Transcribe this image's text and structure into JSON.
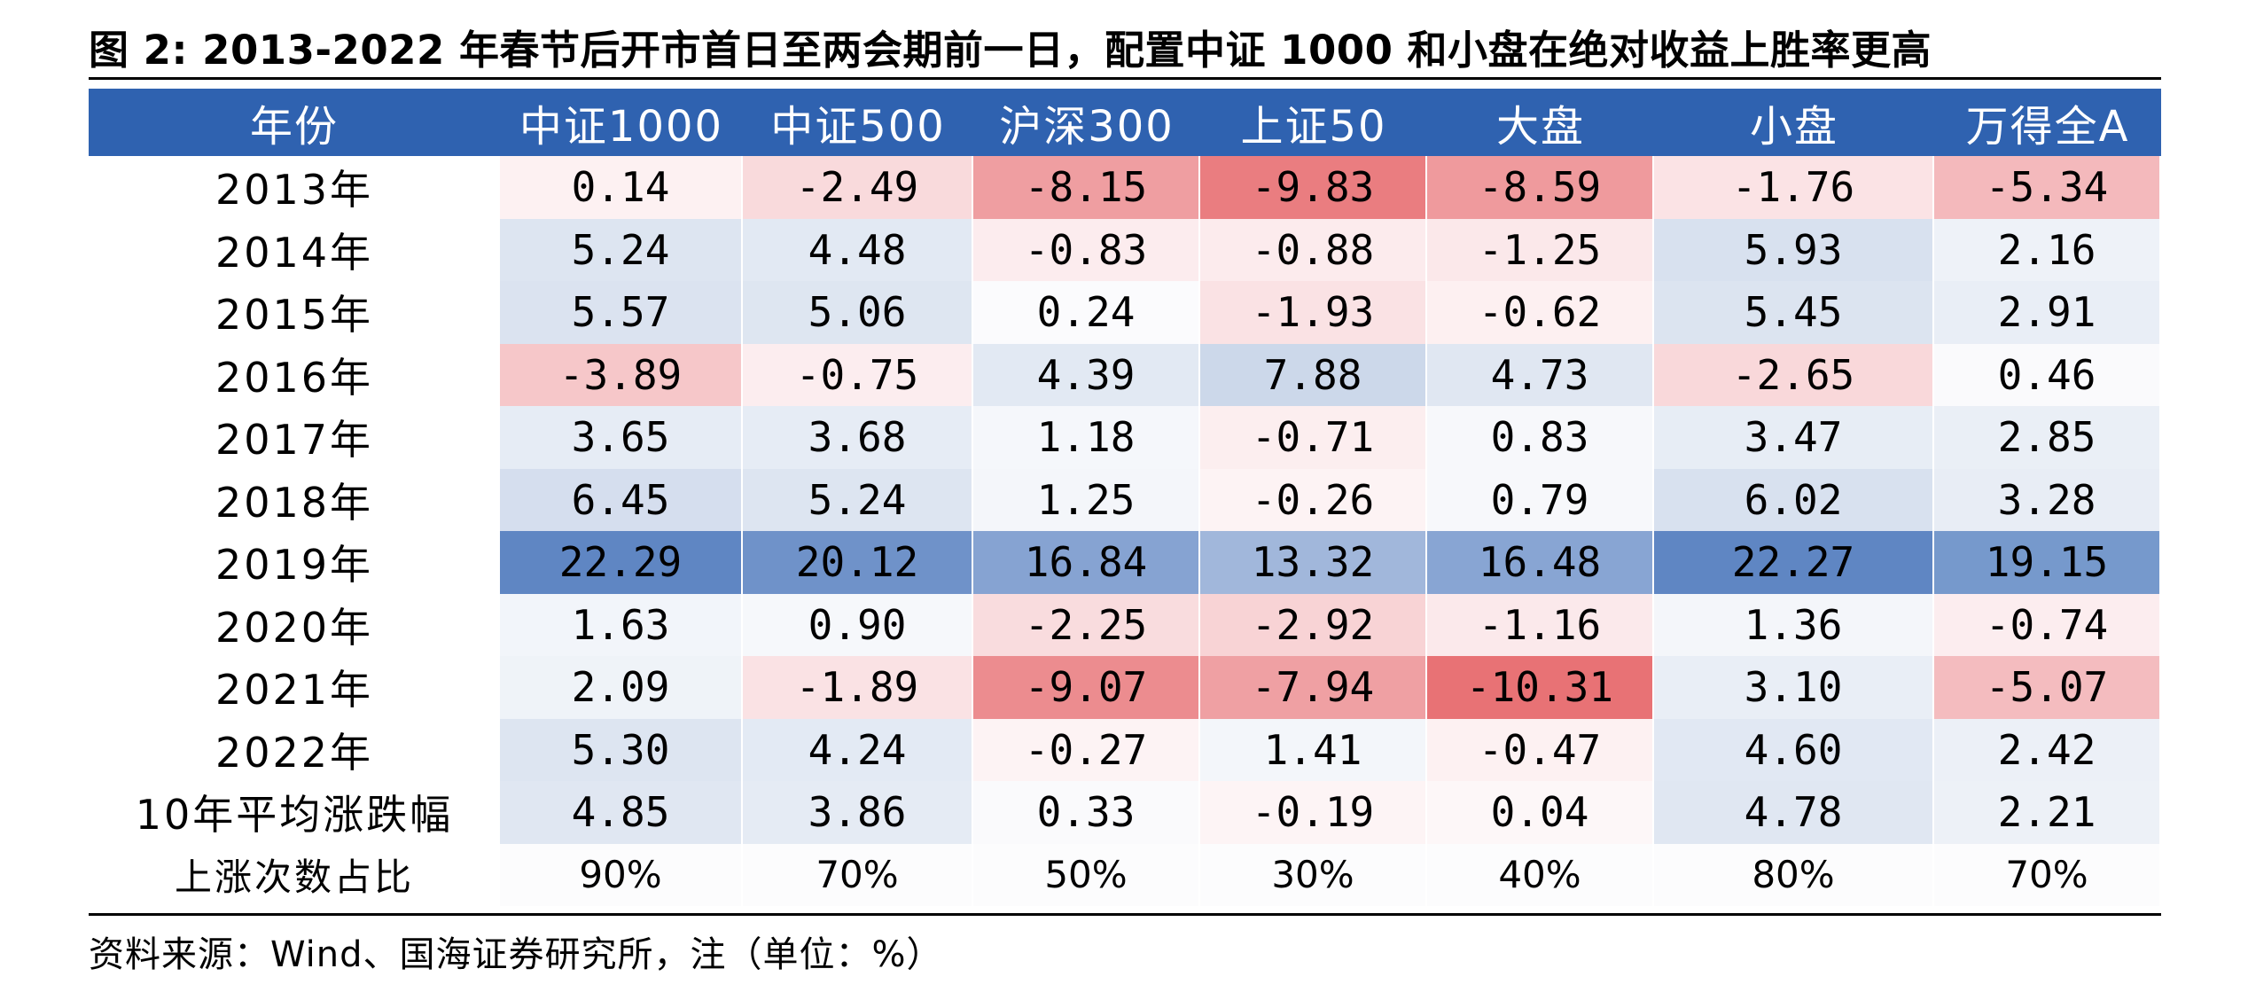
{
  "title": "图 2: 2013-2022 年春节后开市首日至两会期前一日，配置中证 1000 和小盘在绝对收益上胜率更高",
  "source": "资料来源：Wind、国海证券研究所，注（单位：%）",
  "table": {
    "headers": [
      "年份",
      "中证1000",
      "中证500",
      "沪深300",
      "上证50",
      "大盘",
      "小盘",
      "万得全A"
    ],
    "rows": [
      {
        "label": "2013年",
        "cells": [
          {
            "text": "0.14",
            "bg": "#fdf1f2"
          },
          {
            "text": "-2.49",
            "bg": "#f9dadc"
          },
          {
            "text": "-8.15",
            "bg": "#ef9ea1"
          },
          {
            "text": "-9.83",
            "bg": "#ea7d80"
          },
          {
            "text": "-8.59",
            "bg": "#ef9a9d"
          },
          {
            "text": "-1.76",
            "bg": "#fbe3e5"
          },
          {
            "text": "-5.34",
            "bg": "#f4b9bc"
          }
        ]
      },
      {
        "label": "2014年",
        "cells": [
          {
            "text": "5.24",
            "bg": "#dde5f1"
          },
          {
            "text": "4.48",
            "bg": "#e2e9f3"
          },
          {
            "text": "-0.83",
            "bg": "#fcecee"
          },
          {
            "text": "-0.88",
            "bg": "#fcebed"
          },
          {
            "text": "-1.25",
            "bg": "#fbe8ea"
          },
          {
            "text": "5.93",
            "bg": "#d8e1ef"
          },
          {
            "text": "2.16",
            "bg": "#eef2f8"
          }
        ]
      },
      {
        "label": "2015年",
        "cells": [
          {
            "text": "5.57",
            "bg": "#dbe3f0"
          },
          {
            "text": "5.06",
            "bg": "#dee6f1"
          },
          {
            "text": "0.24",
            "bg": "#fbfbfd"
          },
          {
            "text": "-1.93",
            "bg": "#fae2e4"
          },
          {
            "text": "-0.62",
            "bg": "#fdf0f1"
          },
          {
            "text": "5.45",
            "bg": "#dce4f0"
          },
          {
            "text": "2.91",
            "bg": "#e9eef6"
          }
        ]
      },
      {
        "label": "2016年",
        "cells": [
          {
            "text": "-3.89",
            "bg": "#f6c7c9"
          },
          {
            "text": "-0.75",
            "bg": "#fcedef"
          },
          {
            "text": "4.39",
            "bg": "#e2e9f3"
          },
          {
            "text": "7.88",
            "bg": "#ccd8ea"
          },
          {
            "text": "4.73",
            "bg": "#e0e7f2"
          },
          {
            "text": "-2.65",
            "bg": "#f9d8da"
          },
          {
            "text": "0.46",
            "bg": "#fafafc"
          }
        ]
      },
      {
        "label": "2017年",
        "cells": [
          {
            "text": "3.65",
            "bg": "#e6ecf5"
          },
          {
            "text": "3.68",
            "bg": "#e6ecf5"
          },
          {
            "text": "1.18",
            "bg": "#f5f7fb"
          },
          {
            "text": "-0.71",
            "bg": "#fceeef"
          },
          {
            "text": "0.83",
            "bg": "#f7f8fb"
          },
          {
            "text": "3.47",
            "bg": "#e7edf5"
          },
          {
            "text": "2.85",
            "bg": "#eaeff6"
          }
        ]
      },
      {
        "label": "2018年",
        "cells": [
          {
            "text": "6.45",
            "bg": "#d5deee"
          },
          {
            "text": "5.24",
            "bg": "#dde5f1"
          },
          {
            "text": "1.25",
            "bg": "#f4f6fa"
          },
          {
            "text": "-0.26",
            "bg": "#fdf3f4"
          },
          {
            "text": "0.79",
            "bg": "#f7f8fb"
          },
          {
            "text": "6.02",
            "bg": "#d8e1ef"
          },
          {
            "text": "3.28",
            "bg": "#e8edf5"
          }
        ]
      },
      {
        "label": "2019年",
        "cells": [
          {
            "text": "22.29",
            "bg": "#5f86c3"
          },
          {
            "text": "20.12",
            "bg": "#6f92c9"
          },
          {
            "text": "16.84",
            "bg": "#86a3d2"
          },
          {
            "text": "13.32",
            "bg": "#a1b7db"
          },
          {
            "text": "16.48",
            "bg": "#88a5d3"
          },
          {
            "text": "22.27",
            "bg": "#5f86c3"
          },
          {
            "text": "19.15",
            "bg": "#7699cc"
          }
        ]
      },
      {
        "label": "2020年",
        "cells": [
          {
            "text": "1.63",
            "bg": "#f2f5fa"
          },
          {
            "text": "0.90",
            "bg": "#f6f8fb"
          },
          {
            "text": "-2.25",
            "bg": "#f9dcde"
          },
          {
            "text": "-2.92",
            "bg": "#f8d3d5"
          },
          {
            "text": "-1.16",
            "bg": "#fbe9eb"
          },
          {
            "text": "1.36",
            "bg": "#f4f6fa"
          },
          {
            "text": "-0.74",
            "bg": "#fcedef"
          }
        ]
      },
      {
        "label": "2021年",
        "cells": [
          {
            "text": "2.09",
            "bg": "#eff3f8"
          },
          {
            "text": "-1.89",
            "bg": "#fae2e4"
          },
          {
            "text": "-9.07",
            "bg": "#ec8c8f"
          },
          {
            "text": "-7.94",
            "bg": "#efa0a3"
          },
          {
            "text": "-10.31",
            "bg": "#e87275"
          },
          {
            "text": "3.10",
            "bg": "#e9eef6"
          },
          {
            "text": "-5.07",
            "bg": "#f4bcbf"
          }
        ]
      },
      {
        "label": "2022年",
        "cells": [
          {
            "text": "5.30",
            "bg": "#dde5f1"
          },
          {
            "text": "4.24",
            "bg": "#e3eaf4"
          },
          {
            "text": "-0.27",
            "bg": "#fdf3f4"
          },
          {
            "text": "1.41",
            "bg": "#f3f6fa"
          },
          {
            "text": "-0.47",
            "bg": "#fdf1f2"
          },
          {
            "text": "4.60",
            "bg": "#e1e8f3"
          },
          {
            "text": "2.42",
            "bg": "#ecf0f7"
          }
        ]
      },
      {
        "label": "10年平均涨跌幅",
        "cells": [
          {
            "text": "4.85",
            "bg": "#e0e7f2"
          },
          {
            "text": "3.86",
            "bg": "#e5ebf4"
          },
          {
            "text": "0.33",
            "bg": "#fafafc"
          },
          {
            "text": "-0.19",
            "bg": "#fdf4f5"
          },
          {
            "text": "0.04",
            "bg": "#fdf7f8"
          },
          {
            "text": "4.78",
            "bg": "#e0e7f2"
          },
          {
            "text": "2.21",
            "bg": "#edf1f7"
          }
        ]
      }
    ],
    "ratio_row": {
      "label": "上涨次数占比",
      "bg": "#fcfcfd",
      "values": [
        "90%",
        "70%",
        "50%",
        "30%",
        "40%",
        "80%",
        "70%"
      ]
    }
  }
}
